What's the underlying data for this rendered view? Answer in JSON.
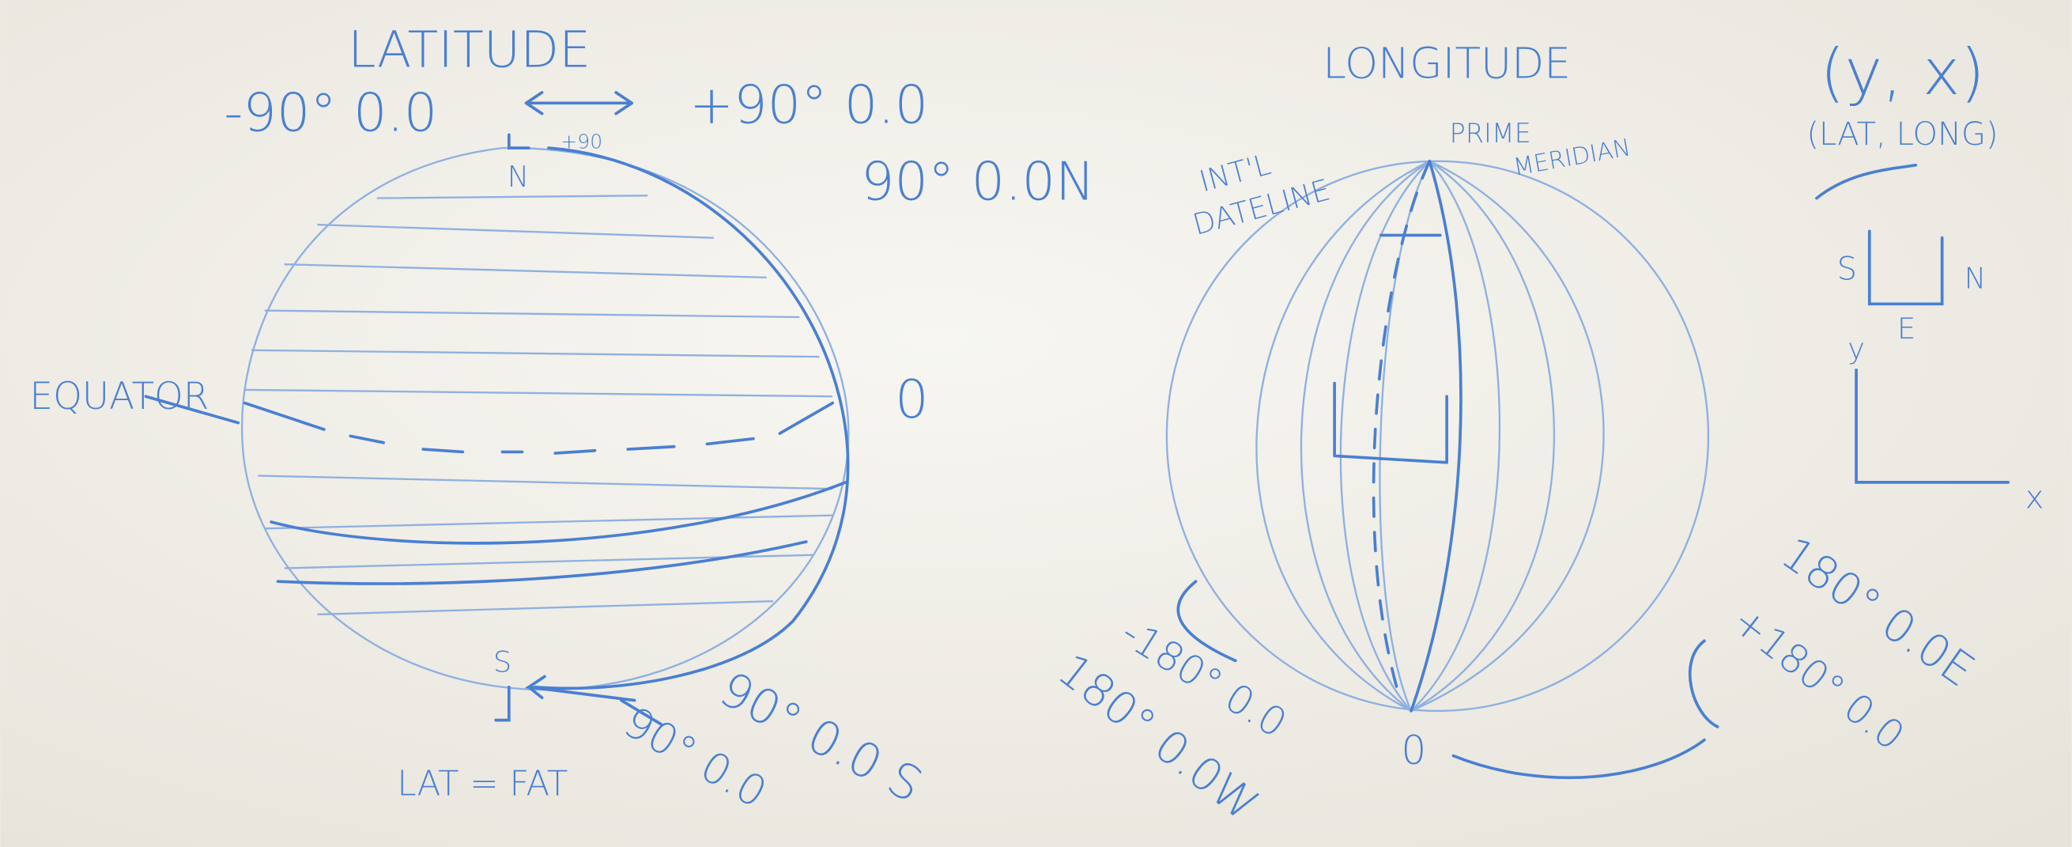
{
  "latitude": {
    "title": "LATITUDE",
    "south_range": "-90° 0.0",
    "north_range": "+90° 0.0",
    "north_note": "+90",
    "north_letter": "N",
    "north_label": "90° 0.0N",
    "equator_label": "EQUATOR",
    "equator_value": "0",
    "south_letter": "S",
    "south_label": "90° 0.0 S",
    "south_value": "90° 0.0",
    "mnemonic": "LAT = FAT"
  },
  "longitude": {
    "title": "LONGITUDE",
    "dateline": [
      "INT'L",
      "DATELINE"
    ],
    "prime_meridian": [
      "PRIME",
      "MERIDIAN"
    ],
    "west_value": "-180° 0.0",
    "west_label": "180° 0.0W",
    "zero": "0",
    "east_label": "180° 0.0E",
    "east_value": "+180° 0.0"
  },
  "coordinates": {
    "pair": "(y, x)",
    "names": "(LAT, LONG)",
    "south": "S",
    "north": "N",
    "east": "E",
    "y_axis": "y",
    "x_axis": "x"
  }
}
